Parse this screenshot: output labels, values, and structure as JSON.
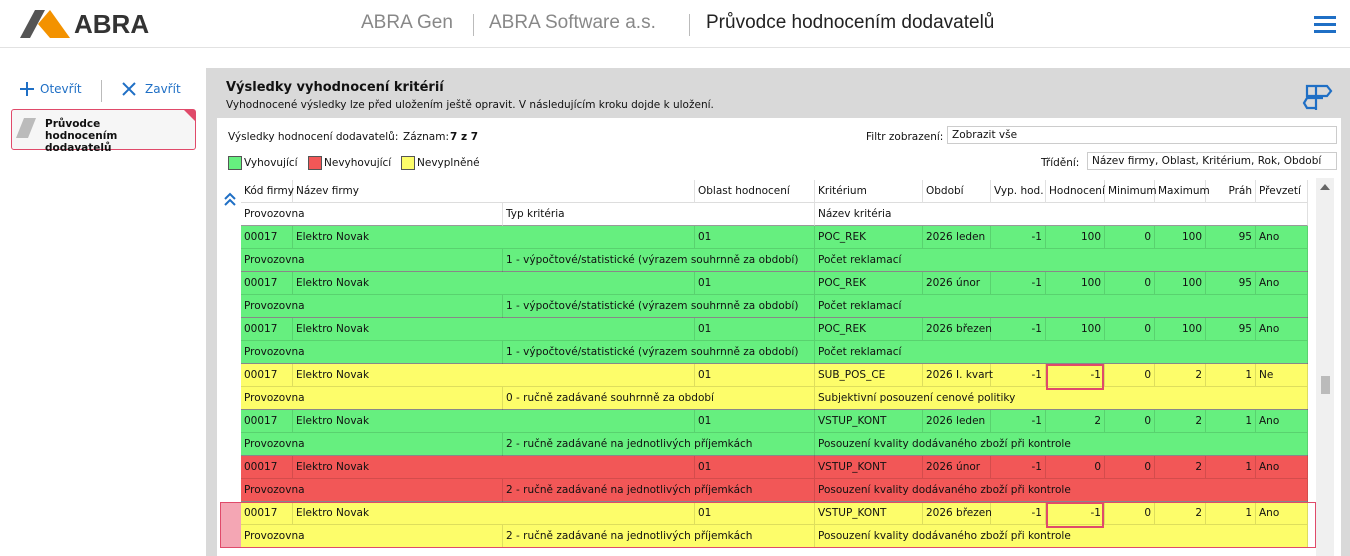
{
  "header": {
    "logo": "ABRA",
    "app": "ABRA Gen",
    "company": "ABRA Software a.s.",
    "title": "Průvodce hodnocením dodavatelů"
  },
  "sidebar": {
    "open": "Otevřít",
    "close": "Zavřít",
    "tab": "Průvodce hodnocením dodavatelů"
  },
  "panel": {
    "title": "Výsledky vyhodnocení kritérií",
    "subtitle": "Vyhodnocené výsledky lze před uložením ještě opravit. V následujícím kroku dojde k uložení."
  },
  "toolbar": {
    "results_label": "Výsledky hodnocení dodavatelů:",
    "record_label": "Záznam:",
    "record_value": "7 z 7",
    "filter_label": "Filtr zobrazení:",
    "filter_value": "Zobrazit vše",
    "sort_label": "Třídění:",
    "sort_value": "Název firmy, Oblast, Kritérium, Rok, Období"
  },
  "legend": [
    {
      "label": "Vyhovující",
      "color": "#66ef7f"
    },
    {
      "label": "Nevyhovující",
      "color": "#f25757"
    },
    {
      "label": "Nevyplněné",
      "color": "#fdfd6a"
    }
  ],
  "table": {
    "columns": [
      "Kód firmy",
      "Název firmy",
      "Oblast hodnocení",
      "Kritérium",
      "Období",
      "Vyp. hod.",
      "Hodnocení",
      "Minimum",
      "Maximum",
      "Práh",
      "Převzetí"
    ],
    "columns2": [
      "Provozovna",
      "Typ kritéria",
      "Název kritéria"
    ],
    "rows": [
      {
        "color": "#66ef7f",
        "cells": [
          "00017",
          "Elektro Novak",
          "01",
          "POC_REK",
          "2026 leden",
          -1,
          100,
          0,
          100,
          95,
          "Ano"
        ],
        "cells2": [
          "Provozovna",
          "1 - výpočtové/statistické (výrazem souhrnně za období)",
          "Počet reklamací"
        ]
      },
      {
        "color": "#66ef7f",
        "cells": [
          "00017",
          "Elektro Novak",
          "01",
          "POC_REK",
          "2026 únor",
          -1,
          100,
          0,
          100,
          95,
          "Ano"
        ],
        "cells2": [
          "Provozovna",
          "1 - výpočtové/statistické (výrazem souhrnně za období)",
          "Počet reklamací"
        ]
      },
      {
        "color": "#66ef7f",
        "cells": [
          "00017",
          "Elektro Novak",
          "01",
          "POC_REK",
          "2026 březen",
          -1,
          100,
          0,
          100,
          95,
          "Ano"
        ],
        "cells2": [
          "Provozovna",
          "1 - výpočtové/statistické (výrazem souhrnně za období)",
          "Počet reklamací"
        ]
      },
      {
        "color": "#fdfd6a",
        "cells": [
          "00017",
          "Elektro Novak",
          "01",
          "SUB_POS_CE",
          "2026 I. kvart",
          -1,
          -1,
          0,
          2,
          1,
          "Ne"
        ],
        "cells2": [
          "Provozovna",
          "0 - ručně zadávané souhrnně za období",
          "Subjektivní posouzení cenové politiky"
        ]
      },
      {
        "color": "#66ef7f",
        "cells": [
          "00017",
          "Elektro Novak",
          "01",
          "VSTUP_KONT",
          "2026 leden",
          -1,
          2,
          0,
          2,
          1,
          "Ano"
        ],
        "cells2": [
          "Provozovna",
          "2 - ručně zadávané na jednotlivých příjemkách",
          "Posouzení kvality dodávaného zboží při kontrole"
        ]
      },
      {
        "color": "#f25757",
        "cells": [
          "00017",
          "Elektro Novak",
          "01",
          "VSTUP_KONT",
          "2026 únor",
          -1,
          0,
          0,
          2,
          1,
          "Ano"
        ],
        "cells2": [
          "Provozovna",
          "2 - ručně zadávané na jednotlivých příjemkách",
          "Posouzení kvality dodávaného zboží při kontrole"
        ]
      },
      {
        "color": "#fdfd6a",
        "cells": [
          "00017",
          "Elektro Novak",
          "01",
          "VSTUP_KONT",
          "2026 březen",
          -1,
          -1,
          0,
          2,
          1,
          "Ano"
        ],
        "cells2": [
          "Provozovna",
          "2 - ručně zadávané na jednotlivých příjemkách",
          "Posouzení kvality dodávaného zboží při kontrole"
        ]
      }
    ]
  }
}
